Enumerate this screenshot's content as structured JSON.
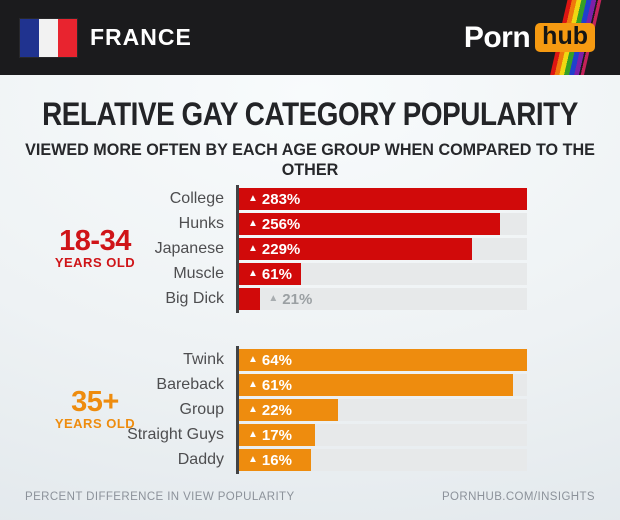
{
  "header": {
    "country": "FRANCE",
    "flag_colors": {
      "blue": "#20338f",
      "white": "#f2f2f2",
      "red": "#e8242f"
    },
    "logo": {
      "part1": "Porn",
      "part2": "hub",
      "badge_color": "#f69a11"
    }
  },
  "title": "RELATIVE GAY CATEGORY POPULARITY",
  "subtitle": "VIEWED MORE OFTEN BY EACH AGE GROUP WHEN COMPARED TO THE OTHER",
  "footer": {
    "left": "PERCENT DIFFERENCE IN VIEW POPULARITY",
    "right": "PORNHUB.COM/INSIGHTS"
  },
  "chart_data": {
    "type": "bar",
    "unit": "%",
    "orientation": "horizontal",
    "scaling": "each group's bars are scaled relative to that group's maximum value",
    "groups": [
      {
        "age_label": "18-34",
        "age_sublabel": "YEARS OLD",
        "bar_color": "#d10a0a",
        "accent_color": "#cf1418",
        "categories": [
          "College",
          "Hunks",
          "Japanese",
          "Muscle",
          "Big Dick"
        ],
        "values": [
          283,
          256,
          229,
          61,
          21
        ],
        "label_inside": [
          true,
          true,
          true,
          true,
          false
        ]
      },
      {
        "age_label": "35+",
        "age_sublabel": "YEARS OLD",
        "bar_color": "#ee8c0e",
        "accent_color": "#ee8c0e",
        "categories": [
          "Twink",
          "Bareback",
          "Group",
          "Straight Guys",
          "Daddy"
        ],
        "values": [
          64,
          61,
          22,
          17,
          16
        ],
        "label_inside": [
          true,
          true,
          true,
          true,
          true
        ]
      }
    ]
  }
}
